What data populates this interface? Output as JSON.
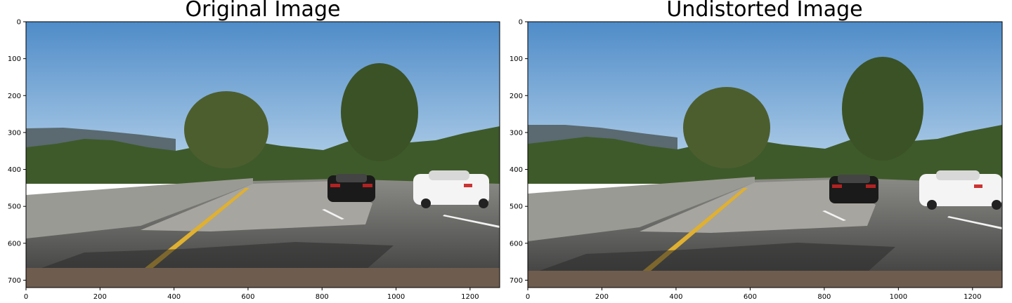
{
  "figure": {
    "panels": [
      {
        "title": "Original Image",
        "x_ticks": [
          "0",
          "200",
          "400",
          "600",
          "800",
          "1000",
          "1200"
        ],
        "y_ticks": [
          "0",
          "100",
          "200",
          "300",
          "400",
          "500",
          "600",
          "700"
        ],
        "image_subject": "highway road scene with cars and trees"
      },
      {
        "title": "Undistorted Image",
        "x_ticks": [
          "0",
          "200",
          "400",
          "600",
          "800",
          "1000",
          "1200"
        ],
        "y_ticks": [
          "0",
          "100",
          "200",
          "300",
          "400",
          "500",
          "600",
          "700"
        ],
        "image_subject": "highway road scene with cars and trees"
      }
    ]
  },
  "colors": {
    "sky": "#6b9fd4",
    "road": "#4a4a4a",
    "lane_yellow": "#e0b030",
    "trees": "#4a5a2a"
  }
}
